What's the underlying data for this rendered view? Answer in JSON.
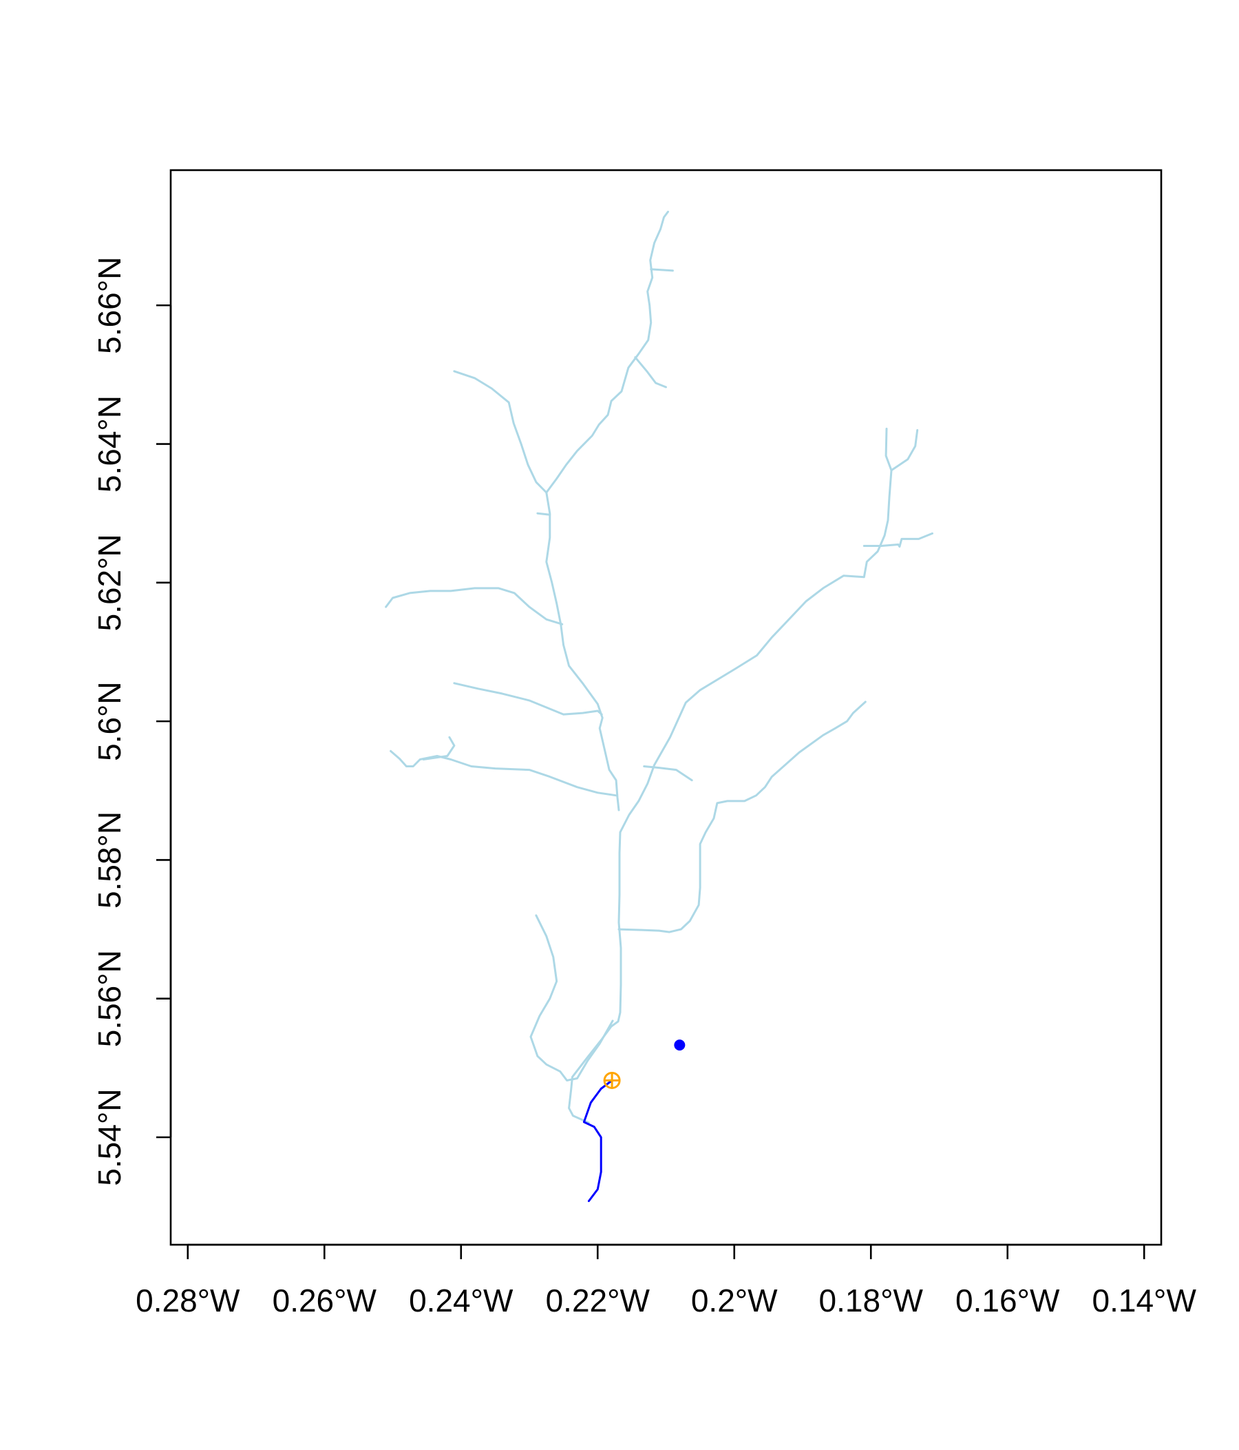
{
  "chart_data": {
    "type": "map",
    "title": "",
    "xlabel": "",
    "ylabel": "",
    "xlim": [
      -0.2825,
      -0.1375
    ],
    "ylim": [
      5.5245,
      5.6795
    ],
    "grid": false,
    "x_tick_labels": [
      {
        "value": -0.28,
        "label": "0.28°W"
      },
      {
        "value": -0.26,
        "label": "0.26°W"
      },
      {
        "value": -0.24,
        "label": "0.24°W"
      },
      {
        "value": -0.22,
        "label": "0.22°W"
      },
      {
        "value": -0.2,
        "label": "0.2°W"
      },
      {
        "value": -0.18,
        "label": "0.18°W"
      },
      {
        "value": -0.16,
        "label": "0.16°W"
      },
      {
        "value": -0.14,
        "label": "0.14°W"
      }
    ],
    "y_tick_labels": [
      {
        "value": 5.54,
        "label": "5.54°N"
      },
      {
        "value": 5.56,
        "label": "5.56°N"
      },
      {
        "value": 5.58,
        "label": "5.58°N"
      },
      {
        "value": 5.6,
        "label": "5.6°N"
      },
      {
        "value": 5.62,
        "label": "5.62°N"
      },
      {
        "value": 5.64,
        "label": "5.64°N"
      },
      {
        "value": 5.66,
        "label": "5.66°N"
      }
    ],
    "colors": {
      "river_network": "#add8e6",
      "flow_path": "#0000ff",
      "input_point": "#0000ff",
      "snapped_point": "#ffa500"
    },
    "series": [
      {
        "type": "lines",
        "lines": [
          [
            [
              -0.2213,
              5.5421
            ],
            [
              -0.2236,
              5.5431
            ],
            [
              -0.2242,
              5.5442
            ],
            [
              -0.2239,
              5.5468
            ],
            [
              -0.2237,
              5.5487
            ],
            [
              -0.2216,
              5.5514
            ],
            [
              -0.2195,
              5.554
            ],
            [
              -0.218,
              5.556
            ],
            [
              -0.217,
              5.5567
            ],
            [
              -0.2167,
              5.558
            ],
            [
              -0.2166,
              5.562
            ],
            [
              -0.2166,
              5.5673
            ],
            [
              -0.2169,
              5.571
            ],
            [
              -0.2168,
              5.575
            ],
            [
              -0.2168,
              5.581
            ],
            [
              -0.2167,
              5.584
            ],
            [
              -0.2154,
              5.5865
            ],
            [
              -0.214,
              5.5885
            ],
            [
              -0.2127,
              5.591
            ],
            [
              -0.2117,
              5.5937
            ],
            [
              -0.2094,
              5.5977
            ],
            [
              -0.2071,
              5.6027
            ],
            [
              -0.205,
              5.6045
            ],
            [
              -0.1998,
              5.6076
            ],
            [
              -0.1967,
              5.6095
            ],
            [
              -0.1945,
              5.6121
            ],
            [
              -0.192,
              5.6147
            ],
            [
              -0.1895,
              5.6173
            ],
            [
              -0.187,
              5.6192
            ],
            [
              -0.184,
              5.621
            ],
            [
              -0.181,
              5.6208
            ],
            [
              -0.1806,
              5.623
            ],
            [
              -0.179,
              5.6245
            ],
            [
              -0.178,
              5.6268
            ],
            [
              -0.1775,
              5.629
            ],
            [
              -0.1773,
              5.6323
            ],
            [
              -0.177,
              5.6362
            ],
            [
              -0.1778,
              5.6383
            ],
            [
              -0.1777,
              5.6422
            ]
          ],
          [
            [
              -0.177,
              5.6362
            ],
            [
              -0.1746,
              5.6378
            ],
            [
              -0.1735,
              5.6397
            ],
            [
              -0.1732,
              5.642
            ]
          ],
          [
            [
              -0.181,
              5.6253
            ],
            [
              -0.1785,
              5.6253
            ],
            [
              -0.176,
              5.6255
            ],
            [
              -0.1758,
              5.6252
            ],
            [
              -0.1755,
              5.6263
            ],
            [
              -0.173,
              5.6263
            ],
            [
              -0.171,
              5.6271
            ]
          ],
          [
            [
              -0.2169,
              5.57
            ],
            [
              -0.2135,
              5.5699
            ],
            [
              -0.211,
              5.5698
            ],
            [
              -0.2095,
              5.5696
            ],
            [
              -0.2078,
              5.57
            ],
            [
              -0.2065,
              5.5712
            ],
            [
              -0.2052,
              5.5735
            ],
            [
              -0.205,
              5.576
            ],
            [
              -0.205,
              5.58
            ],
            [
              -0.205,
              5.5823
            ],
            [
              -0.2042,
              5.584
            ],
            [
              -0.203,
              5.586
            ],
            [
              -0.2025,
              5.5882
            ],
            [
              -0.201,
              5.5885
            ],
            [
              -0.1985,
              5.5885
            ],
            [
              -0.1968,
              5.5893
            ],
            [
              -0.1955,
              5.5905
            ],
            [
              -0.1945,
              5.592
            ],
            [
              -0.1905,
              5.5955
            ],
            [
              -0.187,
              5.598
            ],
            [
              -0.1852,
              5.599
            ],
            [
              -0.1835,
              5.6
            ],
            [
              -0.1826,
              5.6012
            ],
            [
              -0.1808,
              5.6028
            ]
          ],
          [
            [
              -0.2169,
              5.5872
            ],
            [
              -0.2171,
              5.589
            ],
            [
              -0.2173,
              5.5915
            ],
            [
              -0.2183,
              5.593
            ],
            [
              -0.219,
              5.596
            ],
            [
              -0.2197,
              5.599
            ],
            [
              -0.2193,
              5.6005
            ],
            [
              -0.22,
              5.6025
            ],
            [
              -0.2222,
              5.6055
            ],
            [
              -0.2242,
              5.608
            ],
            [
              -0.225,
              5.611
            ],
            [
              -0.2254,
              5.614
            ],
            [
              -0.226,
              5.617
            ],
            [
              -0.2267,
              5.62
            ],
            [
              -0.2275,
              5.623
            ],
            [
              -0.227,
              5.6265
            ],
            [
              -0.227,
              5.63
            ],
            [
              -0.2275,
              5.633
            ]
          ],
          [
            [
              -0.2275,
              5.633
            ],
            [
              -0.226,
              5.635
            ],
            [
              -0.2246,
              5.637
            ],
            [
              -0.223,
              5.639
            ],
            [
              -0.2208,
              5.6412
            ],
            [
              -0.2198,
              5.6428
            ],
            [
              -0.2185,
              5.6442
            ],
            [
              -0.218,
              5.6462
            ],
            [
              -0.2165,
              5.6476
            ],
            [
              -0.2155,
              5.651
            ],
            [
              -0.214,
              5.653
            ],
            [
              -0.2126,
              5.655
            ],
            [
              -0.2122,
              5.6575
            ],
            [
              -0.2124,
              5.66
            ],
            [
              -0.2127,
              5.662
            ],
            [
              -0.212,
              5.664
            ],
            [
              -0.2123,
              5.6665
            ],
            [
              -0.2117,
              5.669
            ],
            [
              -0.2108,
              5.671
            ],
            [
              -0.2103,
              5.6727
            ],
            [
              -0.2097,
              5.6735
            ]
          ],
          [
            [
              -0.2122,
              5.6652
            ],
            [
              -0.209,
              5.665
            ]
          ],
          [
            [
              -0.2145,
              5.6525
            ],
            [
              -0.2128,
              5.6505
            ],
            [
              -0.2115,
              5.6488
            ],
            [
              -0.21,
              5.6482
            ]
          ],
          [
            [
              -0.2275,
              5.633
            ],
            [
              -0.229,
              5.6345
            ],
            [
              -0.2302,
              5.637
            ],
            [
              -0.2312,
              5.64
            ],
            [
              -0.2323,
              5.643
            ],
            [
              -0.233,
              5.646
            ],
            [
              -0.2355,
              5.648
            ],
            [
              -0.238,
              5.6495
            ],
            [
              -0.241,
              5.6505
            ]
          ],
          [
            [
              -0.227,
              5.6298
            ],
            [
              -0.2288,
              5.63
            ]
          ],
          [
            [
              -0.2252,
              5.614
            ],
            [
              -0.2275,
              5.6147
            ],
            [
              -0.23,
              5.6165
            ],
            [
              -0.2322,
              5.6185
            ],
            [
              -0.2345,
              5.6192
            ],
            [
              -0.238,
              5.6192
            ],
            [
              -0.2415,
              5.6188
            ],
            [
              -0.2445,
              5.6188
            ],
            [
              -0.2475,
              5.6185
            ],
            [
              -0.25,
              5.6178
            ],
            [
              -0.251,
              5.6165
            ]
          ],
          [
            [
              -0.2194,
              5.601
            ],
            [
              -0.22,
              5.6015
            ],
            [
              -0.2222,
              5.6012
            ],
            [
              -0.225,
              5.601
            ],
            [
              -0.2275,
              5.602
            ],
            [
              -0.23,
              5.603
            ],
            [
              -0.234,
              5.604
            ],
            [
              -0.2375,
              5.6047
            ],
            [
              -0.241,
              5.6055
            ]
          ],
          [
            [
              -0.2173,
              5.5893
            ],
            [
              -0.22,
              5.5897
            ],
            [
              -0.223,
              5.5905
            ],
            [
              -0.227,
              5.592
            ],
            [
              -0.23,
              5.593
            ],
            [
              -0.235,
              5.5932
            ],
            [
              -0.2385,
              5.5935
            ],
            [
              -0.2415,
              5.5945
            ],
            [
              -0.2435,
              5.595
            ],
            [
              -0.246,
              5.5945
            ],
            [
              -0.247,
              5.5935
            ],
            [
              -0.248,
              5.5935
            ],
            [
              -0.249,
              5.5946
            ],
            [
              -0.2503,
              5.5957
            ]
          ],
          [
            [
              -0.2455,
              5.5945
            ],
            [
              -0.242,
              5.595
            ],
            [
              -0.241,
              5.5965
            ],
            [
              -0.2417,
              5.5977
            ]
          ],
          [
            [
              -0.2132,
              5.5935
            ],
            [
              -0.211,
              5.5933
            ],
            [
              -0.2085,
              5.593
            ],
            [
              -0.2062,
              5.5915
            ]
          ],
          [
            [
              -0.2178,
              5.5568
            ],
            [
              -0.2197,
              5.5535
            ],
            [
              -0.2215,
              5.551
            ],
            [
              -0.223,
              5.5485
            ],
            [
              -0.2245,
              5.5482
            ],
            [
              -0.2255,
              5.5495
            ],
            [
              -0.2275,
              5.5505
            ],
            [
              -0.2288,
              5.5517
            ],
            [
              -0.2298,
              5.5545
            ],
            [
              -0.2285,
              5.5575
            ],
            [
              -0.227,
              5.56
            ],
            [
              -0.226,
              5.5625
            ],
            [
              -0.2265,
              5.566
            ],
            [
              -0.2275,
              5.569
            ],
            [
              -0.229,
              5.572
            ]
          ]
        ]
      },
      {
        "type": "line",
        "points": [
          [
            -0.2179,
            5.5482
          ],
          [
            -0.2195,
            5.547
          ],
          [
            -0.221,
            5.545
          ],
          [
            -0.222,
            5.5422
          ],
          [
            -0.2205,
            5.5415
          ],
          [
            -0.2195,
            5.54
          ],
          [
            -0.2195,
            5.538
          ],
          [
            -0.2195,
            5.535
          ],
          [
            -0.22,
            5.5325
          ],
          [
            -0.2213,
            5.5308
          ]
        ]
      },
      {
        "type": "point",
        "marker": "filled-circle",
        "x": -0.208,
        "y": 5.5533
      },
      {
        "type": "point",
        "marker": "circled-plus",
        "x": -0.2179,
        "y": 5.5482
      }
    ]
  }
}
